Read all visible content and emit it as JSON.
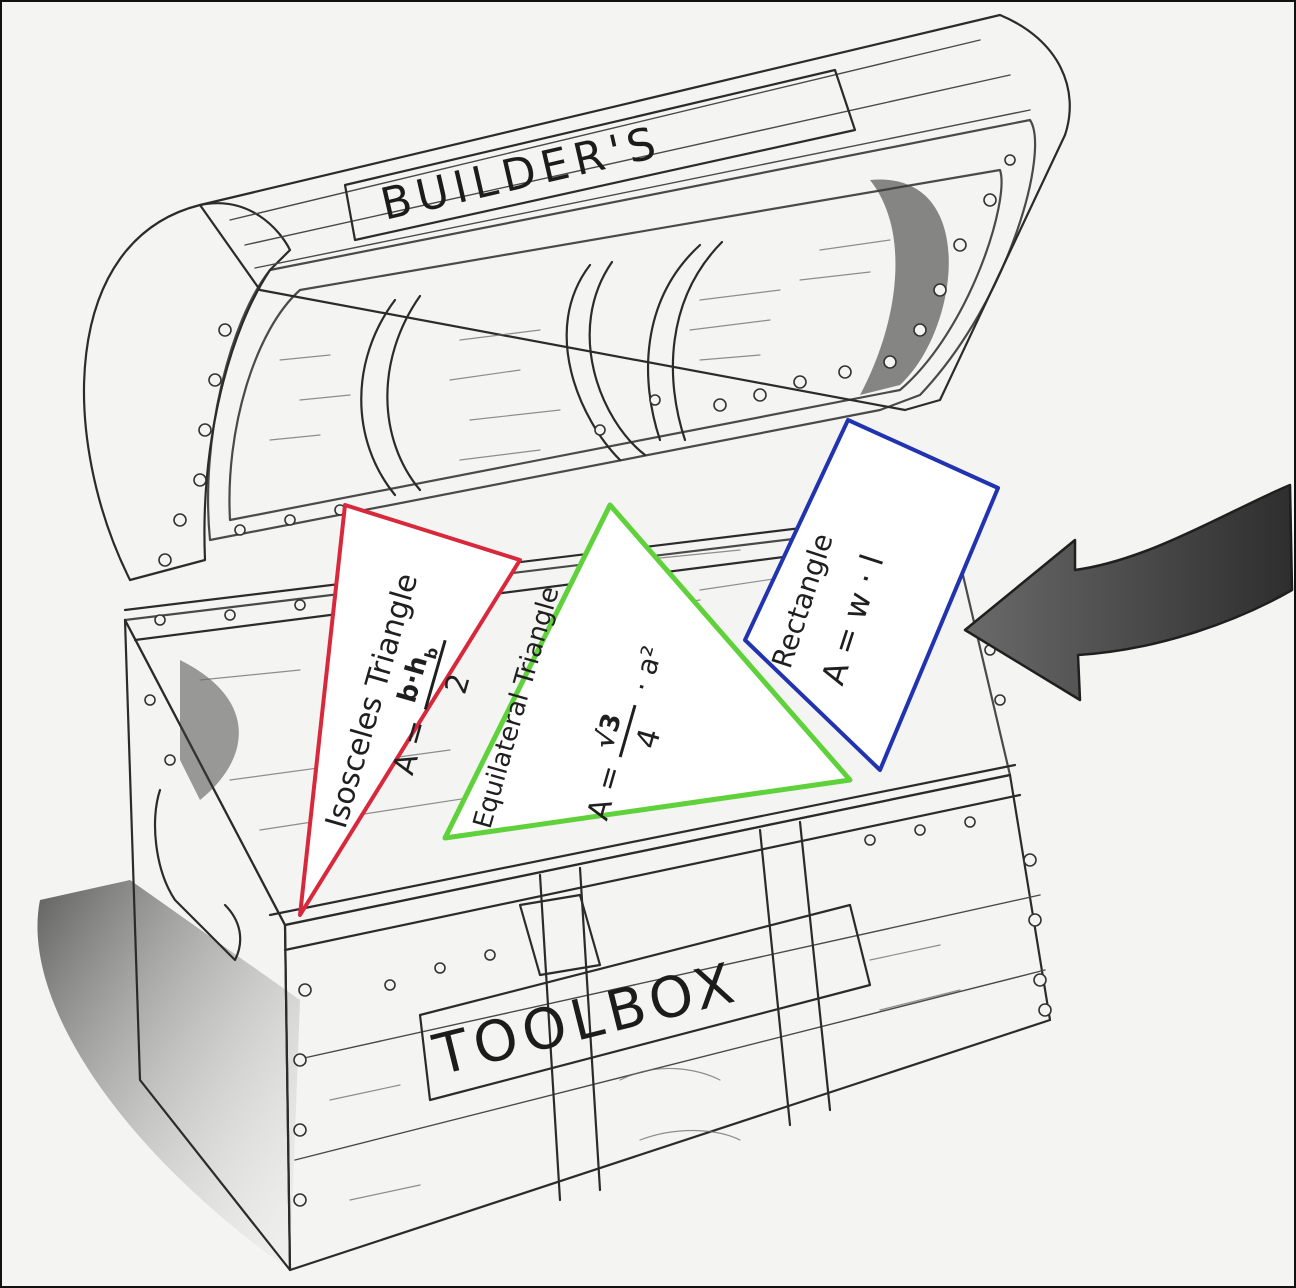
{
  "lid_label": "BUILDER'S",
  "box_label": "TOOLBOX",
  "shapes": [
    {
      "name": "Isosceles Triangle",
      "formula_prefix": "A =",
      "numerator": "b·h",
      "numerator_sub": "b",
      "denominator": "2",
      "color": "#d8283b"
    },
    {
      "name": "Equilateral Triangle",
      "formula_prefix": "A =",
      "numerator": "√3",
      "denominator": "4",
      "formula_suffix": "· a²",
      "color": "#5fd13a"
    },
    {
      "name": "Rectangle",
      "formula": "A = w · l",
      "color": "#2233b0"
    }
  ],
  "colors": {
    "paper": "#f4f4f2",
    "pencil": "#2b2b2b",
    "shadow": "#3a3a3a"
  }
}
